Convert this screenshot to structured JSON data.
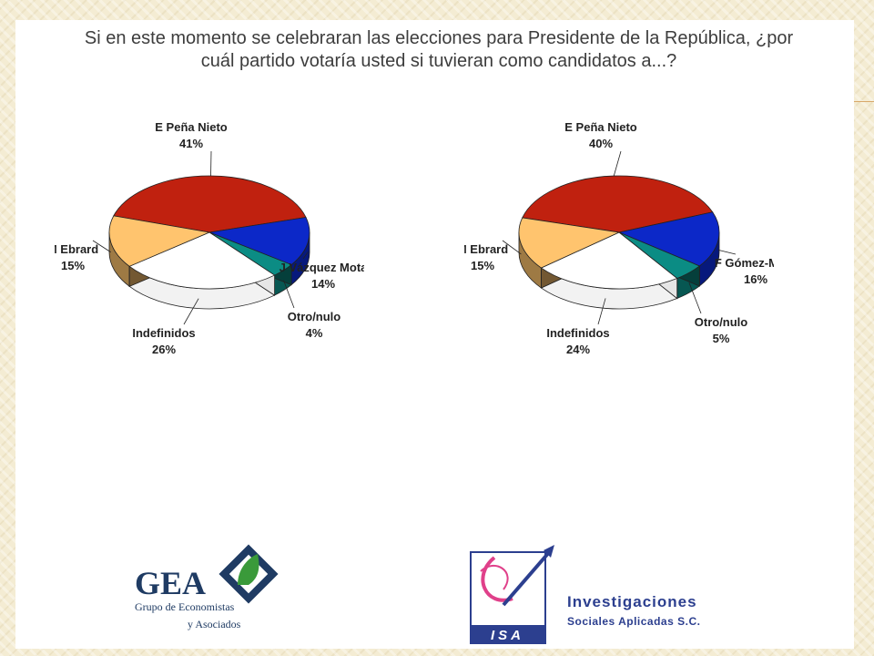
{
  "question": "Si en este momento se celebraran las elecciones para Presidente de la República, ¿por cuál partido votaría usted si tuvieran como candidatos a...?",
  "chart_data": [
    {
      "type": "pie",
      "slices": [
        {
          "label": "E Peña Nieto",
          "value": 41,
          "value_label": "41%",
          "color": "#c0210f"
        },
        {
          "label": "J Vázquez Mota",
          "value": 14,
          "value_label": "14%",
          "color": "#0c28c8"
        },
        {
          "label": "Otro/nulo",
          "value": 4,
          "value_label": "4%",
          "color": "#0b8c84"
        },
        {
          "label": "Indefinidos",
          "value": 26,
          "value_label": "26%",
          "color": "#ffffff"
        },
        {
          "label": "M Ebrard",
          "value": 15,
          "value_label": "15%",
          "color": "#ffc46e"
        }
      ]
    },
    {
      "type": "pie",
      "slices": [
        {
          "label": "E Peña Nieto",
          "value": 40,
          "value_label": "40%",
          "color": "#c0210f"
        },
        {
          "label": "F Gómez-Mont",
          "value": 16,
          "value_label": "16%",
          "color": "#0c28c8"
        },
        {
          "label": "Otro/nulo",
          "value": 5,
          "value_label": "5%",
          "color": "#0b8c84"
        },
        {
          "label": "Indefinidos",
          "value": 24,
          "value_label": "24%",
          "color": "#ffffff"
        },
        {
          "label": "M Ebrard",
          "value": 15,
          "value_label": "15%",
          "color": "#ffc46e"
        }
      ]
    }
  ],
  "logos": {
    "gea": {
      "name": "GEA",
      "line1": "Grupo de Economistas",
      "line2": "y Asociados",
      "color": "#1f3b63",
      "leaf_color": "#3a9a3a"
    },
    "isa": {
      "name": "ISA",
      "line1": "Investigaciones",
      "line2": "Sociales Aplicadas S.C.",
      "color": "#2c3f8f",
      "accent": "#e0408a"
    }
  }
}
